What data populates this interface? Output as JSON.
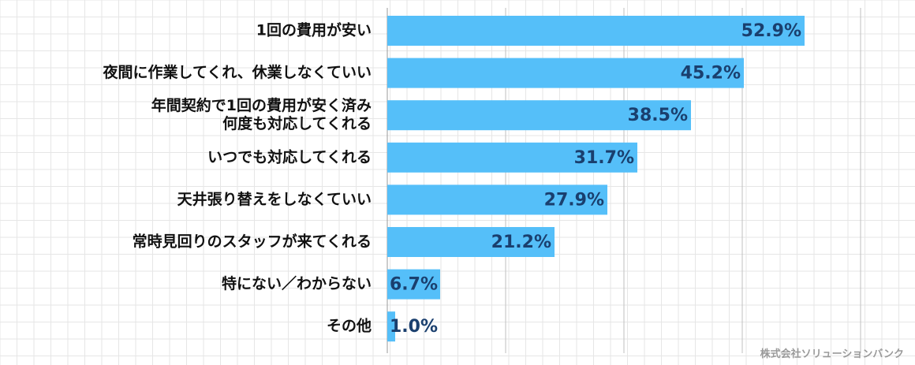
{
  "chart_data": {
    "type": "bar",
    "orientation": "horizontal",
    "categories": [
      [
        "1回の費用が安い"
      ],
      [
        "夜間に作業してくれ、休業しなくていい"
      ],
      [
        "年間契約で1回の費用が安く済み",
        "何度も対応してくれる"
      ],
      [
        "いつでも対応してくれる"
      ],
      [
        "天井張り替えをしなくていい"
      ],
      [
        "常時見回りのスタッフが来てくれる"
      ],
      [
        "特にない／わからない"
      ],
      [
        "その他"
      ]
    ],
    "values": [
      52.9,
      45.2,
      38.5,
      31.7,
      27.9,
      21.2,
      6.7,
      1.0
    ],
    "value_labels": [
      "52.9%",
      "45.2%",
      "38.5%",
      "31.7%",
      "27.9%",
      "21.2%",
      "6.7%",
      "1.0%"
    ],
    "xlim": [
      0,
      60
    ],
    "grid": true,
    "bar_color": "#55bff9",
    "label_color": "#1a3f6e",
    "grid_color": "#e6e6e6",
    "major_grid_color": "#bfbfbf"
  },
  "credit": "株式会社ソリューションバンク"
}
